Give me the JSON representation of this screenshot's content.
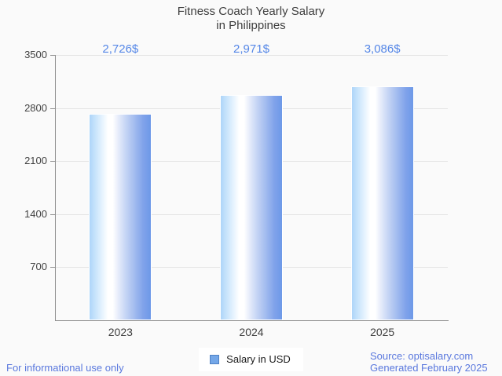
{
  "title": {
    "line1": "Fitness Coach Yearly Salary",
    "line2": "in Philippines"
  },
  "chart_data": {
    "type": "bar",
    "categories": [
      "2023",
      "2024",
      "2025"
    ],
    "values": [
      2726,
      2971,
      3086
    ],
    "value_labels": [
      "2,726$",
      "2,971$",
      "3,086$"
    ],
    "series_name": "Salary in USD",
    "title": "Fitness Coach Yearly Salary in Philippines",
    "xlabel": "",
    "ylabel": "",
    "ylim": [
      0,
      3500
    ],
    "y_ticks": [
      3500,
      2800,
      2100,
      1400,
      700
    ],
    "grid": true,
    "legend_position": "bottom",
    "bar_gradient": [
      "#aed5f9",
      "#ffffff",
      "#6d99e8"
    ],
    "value_label_color": "#5587e7"
  },
  "legend": {
    "label": "Salary in USD",
    "swatch_fill": "#74a7e8",
    "swatch_border": "#4f81c4"
  },
  "footer": {
    "left": "For informational use only",
    "source": "Source: optisalary.com",
    "generated": "Generated February 2025"
  }
}
